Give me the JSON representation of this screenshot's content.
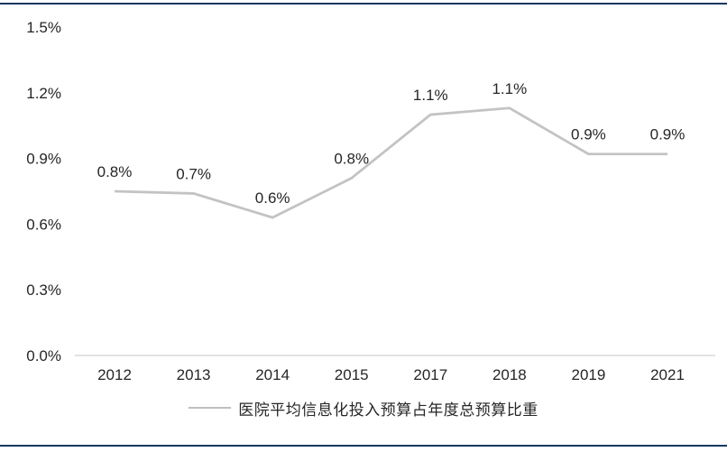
{
  "page": {
    "background": "#FFFFFF",
    "frame_border_color": "#17375D"
  },
  "chart_data": {
    "type": "line",
    "title": "",
    "xlabel": "",
    "ylabel": "",
    "categories": [
      "2012",
      "2013",
      "2014",
      "2015",
      "2017",
      "2018",
      "2019",
      "2021"
    ],
    "series": [
      {
        "name": "医院平均信息化投入预算占年度总预算比重",
        "values": [
          0.8,
          0.7,
          0.6,
          0.8,
          1.1,
          1.1,
          0.9,
          0.9
        ],
        "plot_values": [
          0.75,
          0.74,
          0.63,
          0.81,
          1.1,
          1.13,
          0.92,
          0.92
        ],
        "data_labels": [
          "0.8%",
          "0.7%",
          "0.6%",
          "0.8%",
          "1.1%",
          "1.1%",
          "0.9%",
          "0.9%"
        ],
        "color": "#C3C3C3"
      }
    ],
    "y_axis": {
      "range": [
        0,
        1.5
      ],
      "ticks": [
        {
          "label": "1.5%",
          "value": 1.5
        },
        {
          "label": "1.2%",
          "value": 1.2
        },
        {
          "label": "0.9%",
          "value": 0.9
        },
        {
          "label": "0.6%",
          "value": 0.6
        },
        {
          "label": "0.3%",
          "value": 0.3
        },
        {
          "label": "0.0%",
          "value": 0.0
        }
      ]
    },
    "x_axis": {
      "line_color": "#D9D9D9"
    },
    "grid": false,
    "label_color": "#262626",
    "legend": {
      "position": "bottom",
      "marker": "line",
      "marker_color": "#BFBFBF",
      "label": "医院平均信息化投入预算占年度总预算比重"
    }
  }
}
